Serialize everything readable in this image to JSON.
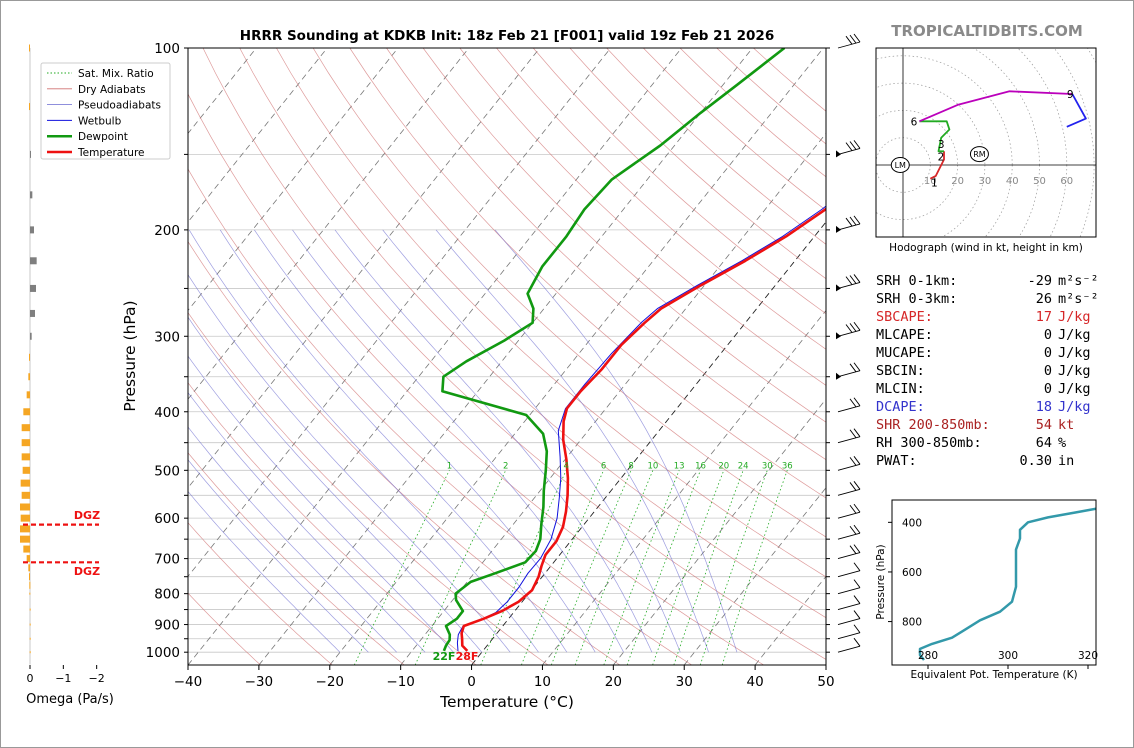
{
  "title": "HRRR Sounding at KDKB Init: 18z Feb 21 [F001] valid 19z Feb 21 2026",
  "brand": "TROPICALTIDBITS.COM",
  "skewt": {
    "xlabel": "Temperature (°C)",
    "ylabel": "Pressure (hPa)",
    "x_ticks": [
      "−40",
      "−30",
      "−20",
      "−10",
      "0",
      "10",
      "20",
      "30",
      "40",
      "50"
    ],
    "y_ticks": [
      "100",
      "200",
      "300",
      "400",
      "500",
      "600",
      "700",
      "800",
      "900",
      "1000"
    ],
    "legend": [
      "Sat. Mix. Ratio",
      "Dry Adiabats",
      "Pseudoadiabats",
      "Wetbulb",
      "Dewpoint",
      "Temperature"
    ],
    "mixing_ratio_labels": [
      "1",
      "2",
      "4",
      "6",
      "8",
      "10",
      "13",
      "16",
      "20",
      "24",
      "30",
      "36"
    ],
    "sfc_dewpoint_label": "22F",
    "sfc_temp_label": "28F",
    "colors": {
      "temperature": "#ee1111",
      "dewpoint": "#119911",
      "wetbulb": "#1111dd",
      "dry": "#d07070",
      "moist": "#6a6ad0",
      "mix": "#22aa22"
    }
  },
  "omega": {
    "xlabel": "Omega (Pa/s)",
    "x_ticks": [
      "0",
      "−1",
      "−2"
    ],
    "dgz_label_top": "DGZ",
    "dgz_label_bottom": "DGZ"
  },
  "hodograph": {
    "caption": "Hodograph (wind in kt, height in km)",
    "ring_labels": [
      "10",
      "20",
      "30",
      "40",
      "50",
      "60"
    ],
    "height_labels": [
      "1",
      "2",
      "3",
      "6",
      "9"
    ],
    "lm_label": "LM",
    "rm_label": "RM"
  },
  "theta_e": {
    "xlabel": "Equivalent Pot. Temperature (K)",
    "ylabel": "Pressure (hPa)",
    "x_ticks": [
      "280",
      "300",
      "320"
    ],
    "y_ticks": [
      "400",
      "600",
      "800"
    ]
  },
  "params": [
    {
      "label": "SRH 0-1km:",
      "value": "-29",
      "unit": "m²s⁻²",
      "color": "#000000"
    },
    {
      "label": "SRH 0-3km:",
      "value": "26",
      "unit": "m²s⁻²",
      "color": "#000000"
    },
    {
      "label": "SBCAPE:",
      "value": "17",
      "unit": "J/kg",
      "color": "#d62728"
    },
    {
      "label": "MLCAPE:",
      "value": "0",
      "unit": "J/kg",
      "color": "#000000"
    },
    {
      "label": "MUCAPE:",
      "value": "0",
      "unit": "J/kg",
      "color": "#000000"
    },
    {
      "label": "SBCIN:",
      "value": "0",
      "unit": "J/kg",
      "color": "#000000"
    },
    {
      "label": "MLCIN:",
      "value": "0",
      "unit": "J/kg",
      "color": "#000000"
    },
    {
      "label": "DCAPE:",
      "value": "18",
      "unit": "J/kg",
      "color": "#3333cc"
    },
    {
      "label": "SHR 200-850mb:",
      "value": "54",
      "unit": "kt",
      "color": "#aa2222"
    },
    {
      "label": "RH 300-850mb:",
      "value": "64",
      "unit": "%",
      "color": "#000000"
    },
    {
      "label": "PWAT:",
      "value": "0.30",
      "unit": "in",
      "color": "#000000"
    }
  ],
  "chart_data": [
    {
      "type": "line",
      "name": "skew-t",
      "title": "HRRR Sounding at KDKB Init: 18z Feb 21 [F001] valid 19z Feb 21 2026",
      "xlabel": "Temperature (°C)",
      "ylabel": "Pressure (hPa)",
      "xlim": [
        -40,
        50
      ],
      "ylim": [
        1050,
        100
      ],
      "y_scale": "log",
      "series": [
        {
          "name": "Temperature",
          "color": "#ee1111",
          "points": [
            [
              -2.2,
              995
            ],
            [
              -3.5,
              975
            ],
            [
              -4.3,
              950
            ],
            [
              -5,
              930
            ],
            [
              -5.5,
              905
            ],
            [
              -3.5,
              880
            ],
            [
              -1.8,
              855
            ],
            [
              -0.5,
              825
            ],
            [
              0.1,
              790
            ],
            [
              -0.5,
              750
            ],
            [
              -1.3,
              720
            ],
            [
              -2,
              690
            ],
            [
              -2,
              655
            ],
            [
              -2.7,
              620
            ],
            [
              -4,
              585
            ],
            [
              -5.6,
              550
            ],
            [
              -7.5,
              515
            ],
            [
              -9.8,
              480
            ],
            [
              -12.5,
              445
            ],
            [
              -14.5,
              415
            ],
            [
              -15.5,
              395
            ],
            [
              -15.5,
              370
            ],
            [
              -15,
              340
            ],
            [
              -15,
              310
            ],
            [
              -14.2,
              285
            ],
            [
              -13.5,
              270
            ],
            [
              -10.5,
              247
            ],
            [
              -7,
              225
            ],
            [
              -4,
              205
            ],
            [
              -1.5,
              185
            ],
            [
              0.5,
              165
            ],
            [
              2.5,
              150
            ],
            [
              4.5,
              135
            ],
            [
              6.5,
              120
            ],
            [
              8.5,
              100
            ]
          ]
        },
        {
          "name": "Dewpoint",
          "color": "#119911",
          "points": [
            [
              -5.5,
              995
            ],
            [
              -5.8,
              975
            ],
            [
              -5.9,
              955
            ],
            [
              -6.5,
              935
            ],
            [
              -8,
              905
            ],
            [
              -7.3,
              880
            ],
            [
              -7.3,
              855
            ],
            [
              -9.5,
              820
            ],
            [
              -10.3,
              800
            ],
            [
              -9.5,
              765
            ],
            [
              -7,
              740
            ],
            [
              -4,
              710
            ],
            [
              -3.8,
              680
            ],
            [
              -4.5,
              650
            ],
            [
              -6,
              615
            ],
            [
              -7.7,
              575
            ],
            [
              -9.5,
              540
            ],
            [
              -11.5,
              500
            ],
            [
              -13.5,
              465
            ],
            [
              -16,
              435
            ],
            [
              -20.5,
              405
            ],
            [
              -35,
              370
            ],
            [
              -36.5,
              350
            ],
            [
              -35,
              330
            ],
            [
              -32,
              305
            ],
            [
              -30,
              285
            ],
            [
              -31.5,
              270
            ],
            [
              -34,
              255
            ],
            [
              -35,
              230
            ],
            [
              -35,
              205
            ],
            [
              -35.5,
              185
            ],
            [
              -35,
              165
            ],
            [
              -32,
              145
            ],
            [
              -30,
              128
            ],
            [
              -28,
              115
            ],
            [
              -25.5,
              100
            ]
          ]
        },
        {
          "name": "Wetbulb",
          "color": "#1111dd",
          "points": [
            [
              -3.5,
              995
            ],
            [
              -4.5,
              965
            ],
            [
              -5.3,
              935
            ],
            [
              -5.6,
              905
            ],
            [
              -3.9,
              885
            ],
            [
              -2.5,
              860
            ],
            [
              -2.1,
              825
            ],
            [
              -2.1,
              780
            ],
            [
              -2.4,
              740
            ],
            [
              -2.3,
              700
            ],
            [
              -3,
              650
            ],
            [
              -4.5,
              600
            ],
            [
              -6.5,
              555
            ],
            [
              -8.5,
              515
            ],
            [
              -11,
              475
            ],
            [
              -14.2,
              430
            ],
            [
              -15.7,
              395
            ],
            [
              -15.7,
              360
            ],
            [
              -15.4,
              320
            ],
            [
              -14.7,
              285
            ],
            [
              -14,
              270
            ],
            [
              -11,
              247
            ],
            [
              -7.5,
              225
            ],
            [
              -4.5,
              205
            ],
            [
              -2,
              185
            ],
            [
              0,
              165
            ],
            [
              2,
              150
            ],
            [
              3.5,
              135
            ],
            [
              5.5,
              120
            ],
            [
              7.7,
              100
            ]
          ]
        }
      ]
    },
    {
      "type": "bar",
      "name": "omega",
      "xlabel": "Omega (Pa/s)",
      "xlim": [
        0.15,
        -2.4
      ],
      "dgz_pressure": [
        615,
        710
      ],
      "levels": [
        100,
        125,
        150,
        175,
        200,
        225,
        250,
        275,
        300,
        325,
        350,
        375,
        400,
        425,
        450,
        475,
        500,
        525,
        550,
        575,
        600,
        625,
        650,
        675,
        700,
        725,
        750,
        775,
        800,
        850,
        900,
        950,
        1000
      ],
      "values": [
        0.03,
        0.03,
        -0.02,
        -0.07,
        -0.12,
        -0.2,
        -0.18,
        -0.15,
        -0.05,
        0.03,
        0.05,
        0.1,
        0.2,
        0.25,
        0.25,
        0.25,
        0.22,
        0.28,
        0.25,
        0.3,
        0.28,
        0.3,
        0.3,
        0.2,
        0.1,
        0.05,
        0.03,
        0.02,
        0.02,
        0.01,
        0.01,
        0.01,
        0.01
      ]
    },
    {
      "type": "line",
      "name": "hodograph",
      "xlabel": "",
      "ylabel": "",
      "series": [
        {
          "color": "#d62728",
          "height_km": [
            0.5,
            1,
            1.5,
            2
          ],
          "uv": [
            [
              10,
              -5
            ],
            [
              12,
              -4
            ],
            [
              15,
              2
            ],
            [
              15,
              5
            ]
          ]
        },
        {
          "color": "#22aa22",
          "height_km": [
            2,
            3,
            6
          ],
          "uv": [
            [
              15,
              5
            ],
            [
              13,
              5
            ],
            [
              14,
              10
            ],
            [
              17,
              13
            ],
            [
              16,
              16
            ],
            [
              6,
              16
            ]
          ]
        },
        {
          "color": "#bb00bb",
          "height_km": [
            6,
            9
          ],
          "uv": [
            [
              6,
              16
            ],
            [
              20,
              22
            ],
            [
              39,
              27
            ],
            [
              62,
              26
            ]
          ]
        },
        {
          "color": "#2222ee",
          "height_km": [
            9,
            11
          ],
          "uv": [
            [
              62,
              26
            ],
            [
              67,
              17
            ],
            [
              60,
              14
            ]
          ]
        }
      ],
      "storm_motion": {
        "LM": [
          -1,
          0
        ],
        "RM": [
          28,
          4
        ]
      }
    },
    {
      "type": "line",
      "name": "theta-e",
      "xlabel": "Equivalent Pot. Temperature (K)",
      "ylabel": "Pressure (hPa)",
      "xlim": [
        271,
        322
      ],
      "ylim": [
        975,
        310
      ],
      "series": [
        {
          "color": "#3399aa",
          "points": [
            [
              279,
              955
            ],
            [
              278,
              935
            ],
            [
              278,
              910
            ],
            [
              281,
              890
            ],
            [
              286,
              865
            ],
            [
              289,
              835
            ],
            [
              293,
              795
            ],
            [
              298,
              760
            ],
            [
              301,
              720
            ],
            [
              302,
              660
            ],
            [
              302,
              610
            ],
            [
              302,
              560
            ],
            [
              302,
              510
            ],
            [
              303,
              465
            ],
            [
              303,
              430
            ],
            [
              305,
              400
            ],
            [
              310,
              380
            ],
            [
              317,
              360
            ],
            [
              322,
              345
            ]
          ]
        }
      ]
    }
  ]
}
